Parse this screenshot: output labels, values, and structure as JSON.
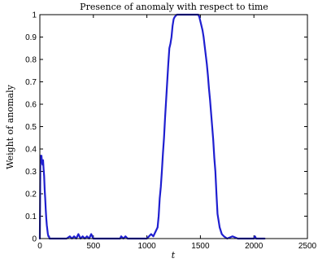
{
  "chart_data": {
    "type": "line",
    "title": "Presence of anomaly with respect to time",
    "xlabel": "t",
    "ylabel": "Weight of anomaly",
    "xlim": [
      0,
      2500
    ],
    "ylim": [
      0,
      1
    ],
    "x_ticks": [
      0,
      500,
      1000,
      1500,
      2000,
      2500
    ],
    "y_ticks": [
      0,
      0.1,
      0.2,
      0.3,
      0.4,
      0.5,
      0.6,
      0.7,
      0.8,
      0.9,
      1
    ],
    "x_tick_labels": [
      "0",
      "500",
      "1000",
      "1500",
      "2000",
      "2500"
    ],
    "y_tick_labels": [
      "0",
      "0.1",
      "0.2",
      "0.3",
      "0.4",
      "0.5",
      "0.6",
      "0.7",
      "0.8",
      "0.9",
      "1"
    ],
    "grid": false,
    "series": [
      {
        "color": "#1f1fd0",
        "x": [
          0,
          5,
          10,
          15,
          20,
          25,
          30,
          35,
          40,
          45,
          50,
          55,
          60,
          65,
          70,
          75,
          80,
          85,
          90,
          95,
          100,
          110,
          120,
          140,
          160,
          200,
          250,
          280,
          300,
          320,
          340,
          360,
          380,
          400,
          420,
          440,
          460,
          480,
          500,
          520,
          550,
          600,
          650,
          700,
          750,
          760,
          780,
          800,
          820,
          850,
          900,
          950,
          1000,
          1020,
          1040,
          1060,
          1080,
          1100,
          1110,
          1120,
          1130,
          1140,
          1150,
          1160,
          1170,
          1180,
          1190,
          1200,
          1210,
          1220,
          1230,
          1240,
          1250,
          1260,
          1280,
          1300,
          1350,
          1400,
          1450,
          1480,
          1490,
          1500,
          1510,
          1520,
          1530,
          1540,
          1550,
          1560,
          1570,
          1580,
          1590,
          1600,
          1610,
          1620,
          1630,
          1640,
          1650,
          1660,
          1680,
          1700,
          1720,
          1750,
          1800,
          1850,
          1880,
          1900,
          1950,
          2000,
          2010,
          2020,
          2050,
          2100
        ],
        "y": [
          0,
          0.37,
          0.35,
          0.37,
          0.34,
          0.33,
          0.35,
          0.31,
          0.28,
          0.22,
          0.18,
          0.13,
          0.09,
          0.06,
          0.04,
          0.02,
          0.01,
          0.01,
          0,
          0,
          0,
          0,
          0,
          0,
          0,
          0,
          0,
          0.01,
          0,
          0.01,
          0,
          0.02,
          0,
          0.01,
          0,
          0.01,
          0,
          0.02,
          0,
          0,
          0,
          0,
          0,
          0,
          0,
          0.01,
          0,
          0.01,
          0,
          0,
          0,
          0,
          0,
          0.01,
          0.02,
          0.01,
          0.03,
          0.05,
          0.1,
          0.18,
          0.23,
          0.3,
          0.38,
          0.45,
          0.54,
          0.62,
          0.7,
          0.78,
          0.85,
          0.87,
          0.9,
          0.95,
          0.98,
          0.99,
          1,
          1,
          1,
          1,
          1,
          1,
          0.99,
          0.97,
          0.95,
          0.93,
          0.9,
          0.86,
          0.82,
          0.78,
          0.73,
          0.67,
          0.62,
          0.56,
          0.5,
          0.44,
          0.36,
          0.3,
          0.2,
          0.11,
          0.05,
          0.02,
          0.01,
          0,
          0.01,
          0,
          0,
          0,
          0,
          0,
          0.01,
          0,
          0,
          0
        ]
      }
    ]
  }
}
